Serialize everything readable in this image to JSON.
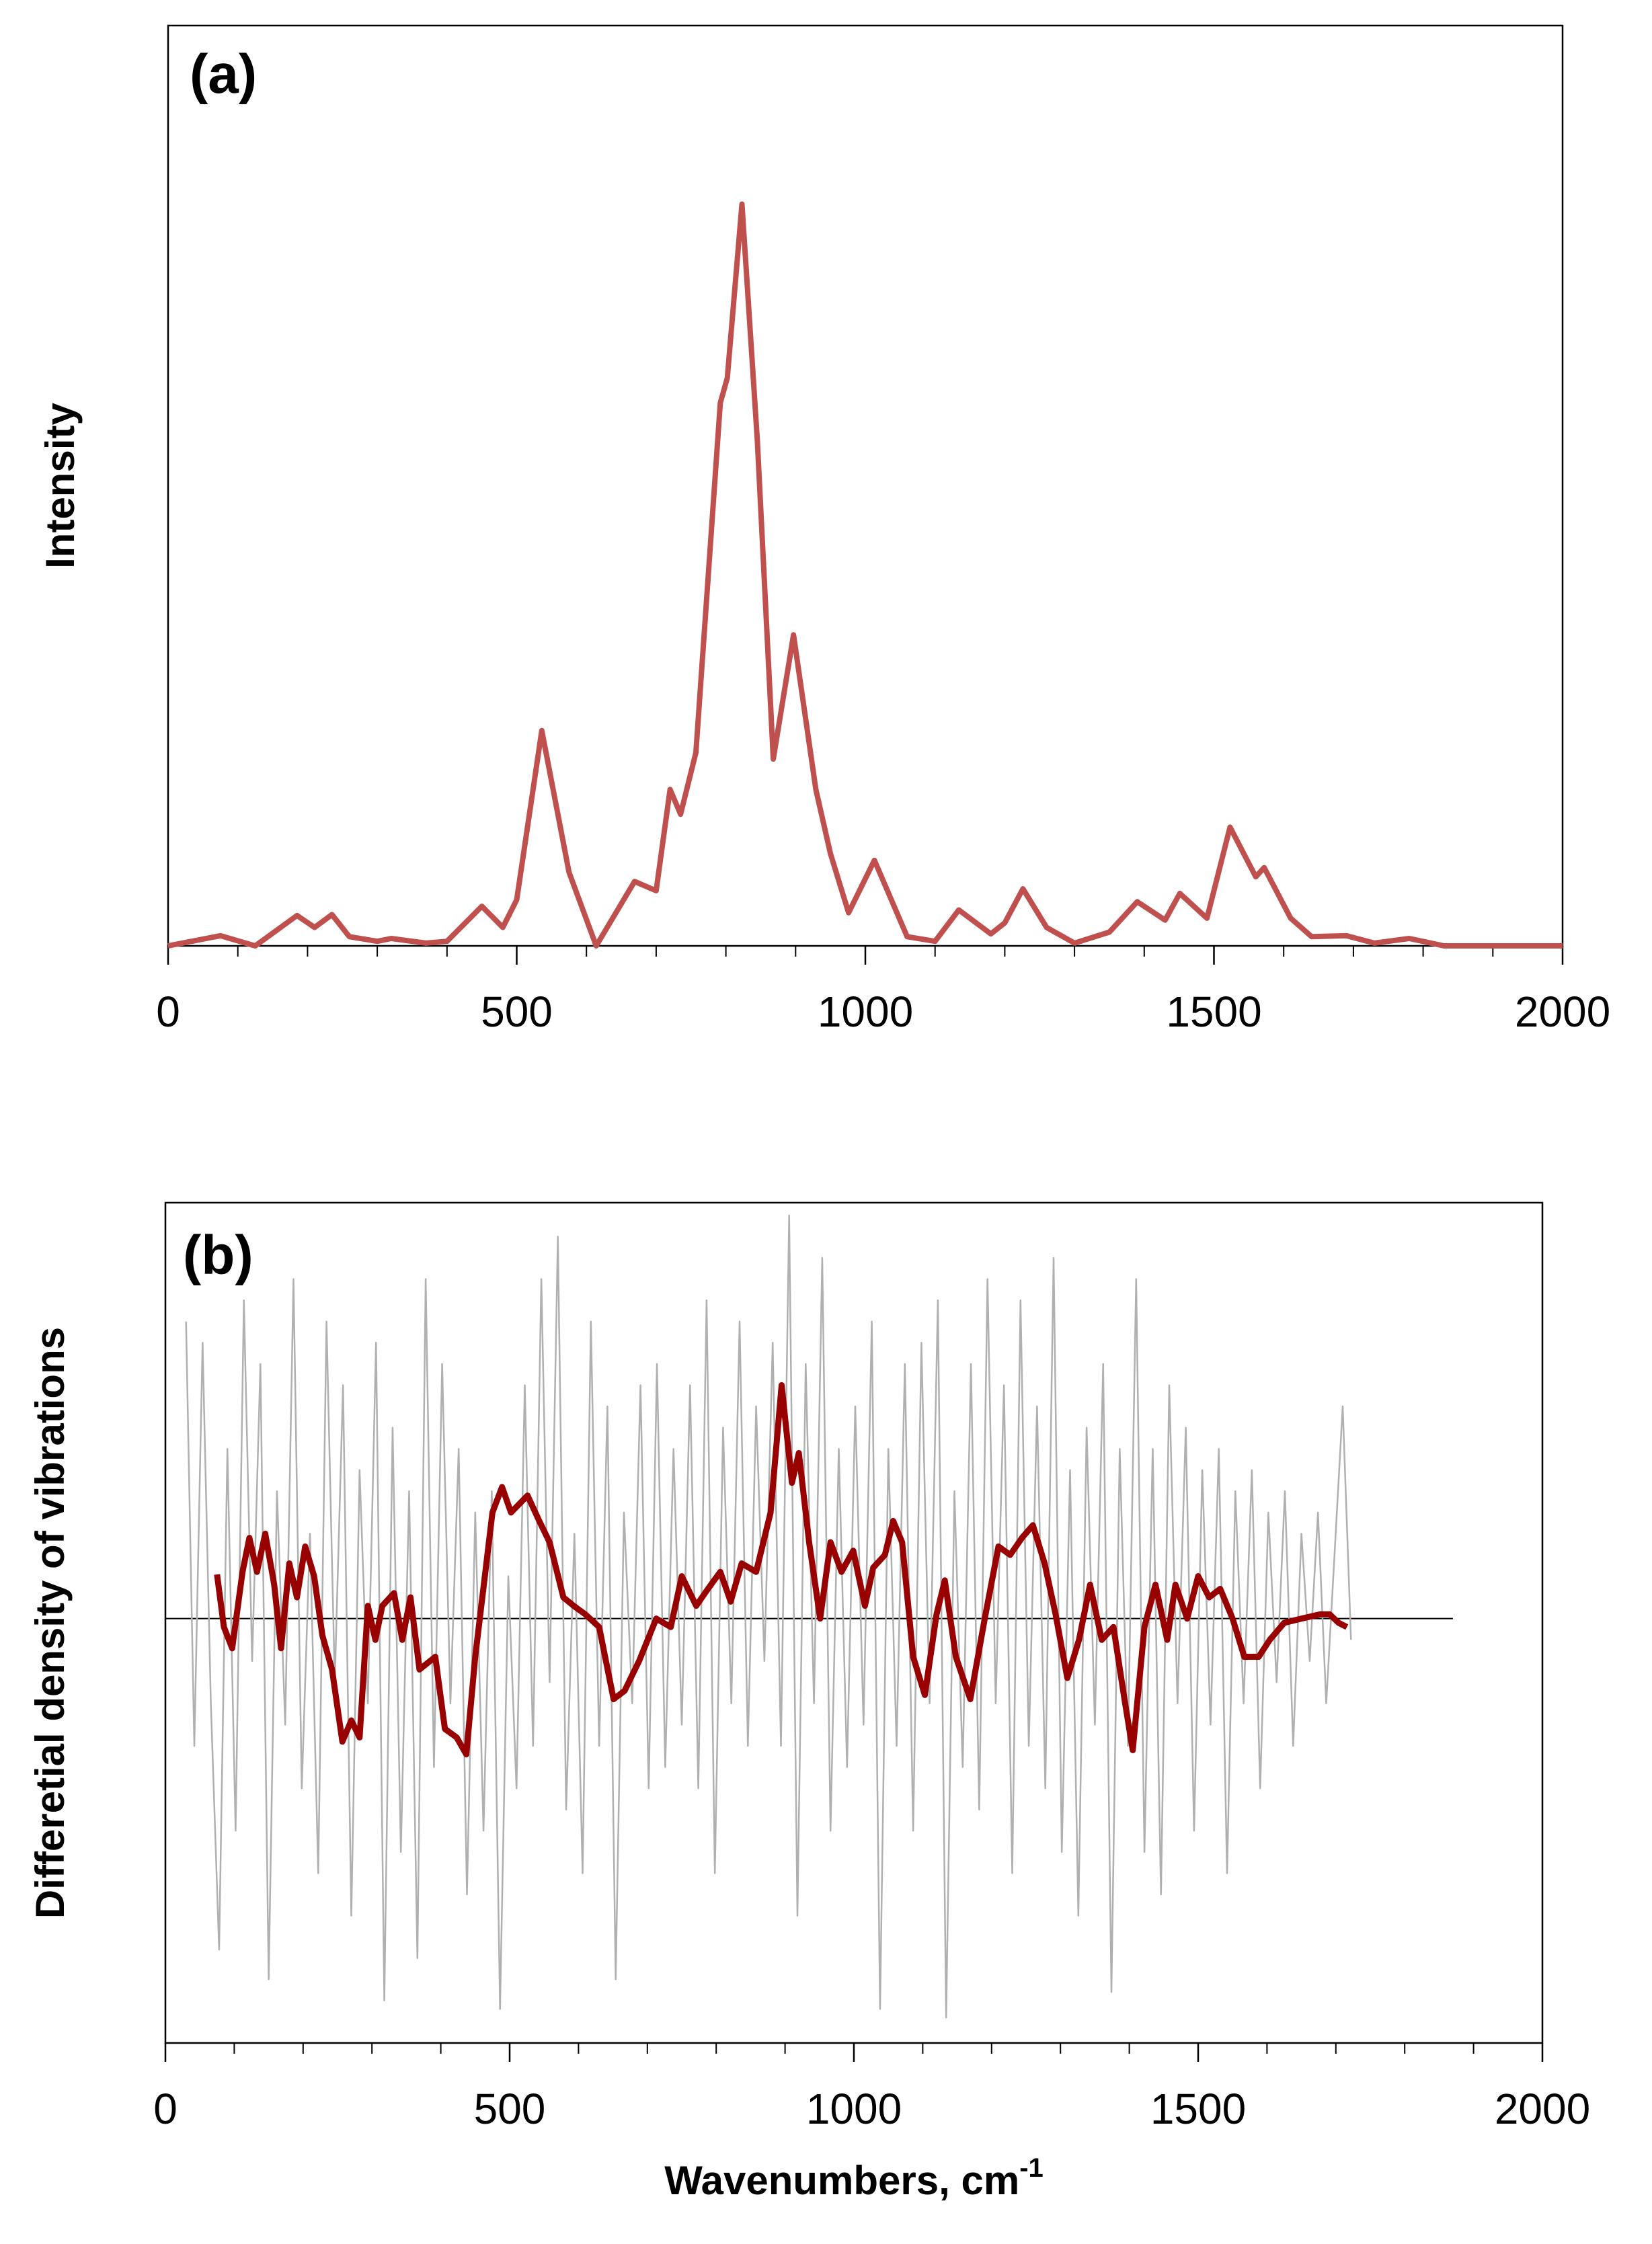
{
  "chart_data": [
    {
      "type": "line",
      "title": "(a)",
      "ylabel": "Intensity",
      "xlim": [
        0,
        2000
      ],
      "xticks": [
        0,
        500,
        1000,
        1500,
        2000
      ],
      "minor_tick_step": 100,
      "ylim": [
        0,
        100
      ],
      "series": [
        {
          "color": "#c0504d",
          "x": [
            0,
            75,
            125,
            185,
            210,
            235,
            260,
            300,
            320,
            370,
            400,
            450,
            480,
            500,
            536,
            575,
            614,
            669,
            700,
            720,
            735,
            757,
            792,
            802,
            823,
            845,
            868,
            897,
            929,
            950,
            976,
            1013,
            1060,
            1100,
            1134,
            1180,
            1200,
            1226,
            1260,
            1300,
            1350,
            1390,
            1430,
            1451,
            1490,
            1523,
            1560,
            1572,
            1610,
            1640,
            1690,
            1730,
            1780,
            1830,
            2000
          ],
          "values": [
            0,
            1.1,
            0,
            3.3,
            2,
            3.4,
            1,
            0.5,
            0.8,
            0.3,
            0.5,
            4.3,
            2,
            5,
            23.4,
            8,
            0,
            7,
            6,
            17,
            14.3,
            21,
            59,
            61.7,
            80.6,
            55,
            20.3,
            33.8,
            17,
            10,
            3.6,
            9.3,
            1,
            0.5,
            3.9,
            1.3,
            2.5,
            6.2,
            2,
            0.3,
            1.5,
            4.8,
            2.8,
            5.7,
            3,
            12.9,
            7.5,
            8.5,
            3,
            1,
            1.1,
            0.3,
            0.8,
            0,
            0
          ]
        }
      ]
    },
    {
      "type": "line",
      "title": "(b)",
      "ylabel": "Differetial density of vibrations",
      "xlabel": "Wavenumbers, cm",
      "xlabel_sup": "-1",
      "xlim": [
        0,
        2000
      ],
      "xticks": [
        0,
        500,
        1000,
        1500,
        2000
      ],
      "minor_tick_step": 100,
      "ylim": [
        -100,
        98
      ],
      "hline": {
        "y": 0,
        "x": [
          0,
          1870
        ]
      },
      "series": [
        {
          "color": "#b0b0b0",
          "x": [
            30,
            42,
            54,
            66,
            78,
            90,
            102,
            114,
            126,
            138,
            150,
            162,
            174,
            186,
            198,
            210,
            222,
            234,
            246,
            258,
            270,
            282,
            294,
            306,
            318,
            330,
            342,
            354,
            366,
            378,
            390,
            402,
            414,
            426,
            438,
            450,
            462,
            474,
            486,
            498,
            510,
            522,
            534,
            546,
            558,
            570,
            582,
            594,
            606,
            618,
            630,
            642,
            654,
            666,
            678,
            690,
            702,
            714,
            726,
            738,
            750,
            762,
            774,
            786,
            798,
            810,
            822,
            834,
            846,
            858,
            870,
            882,
            894,
            906,
            918,
            930,
            942,
            954,
            966,
            978,
            990,
            1002,
            1014,
            1026,
            1038,
            1050,
            1062,
            1074,
            1086,
            1098,
            1110,
            1122,
            1134,
            1146,
            1158,
            1170,
            1182,
            1194,
            1206,
            1218,
            1230,
            1242,
            1254,
            1266,
            1278,
            1290,
            1302,
            1314,
            1326,
            1338,
            1350,
            1362,
            1374,
            1386,
            1398,
            1410,
            1422,
            1434,
            1446,
            1458,
            1470,
            1482,
            1494,
            1506,
            1518,
            1530,
            1542,
            1554,
            1566,
            1578,
            1590,
            1602,
            1614,
            1626,
            1638,
            1650,
            1662,
            1674,
            1686,
            1698,
            1710,
            1722
          ],
          "values": [
            70,
            -30,
            65,
            -20,
            -78,
            40,
            -50,
            75,
            -10,
            60,
            -85,
            30,
            -25,
            80,
            -40,
            20,
            -60,
            70,
            -15,
            55,
            -70,
            35,
            -20,
            65,
            -90,
            45,
            -55,
            30,
            -80,
            80,
            -35,
            60,
            -20,
            40,
            -65,
            25,
            -50,
            30,
            -92,
            10,
            -40,
            55,
            -30,
            80,
            -15,
            90,
            -45,
            20,
            -60,
            70,
            -30,
            50,
            -85,
            25,
            -20,
            55,
            -40,
            60,
            -35,
            40,
            -25,
            55,
            -40,
            75,
            -60,
            45,
            -20,
            70,
            -30,
            50,
            -10,
            65,
            -30,
            95,
            -70,
            60,
            -20,
            85,
            -50,
            40,
            -35,
            50,
            -25,
            70,
            -92,
            40,
            -30,
            60,
            -50,
            65,
            -20,
            75,
            -94,
            30,
            -35,
            60,
            -45,
            80,
            -20,
            55,
            -60,
            75,
            -30,
            50,
            -40,
            85,
            -55,
            35,
            -70,
            45,
            -25,
            60,
            -88,
            40,
            -30,
            80,
            -55,
            40,
            -65,
            55,
            -20,
            45,
            -50,
            35,
            -25,
            40,
            -60,
            30,
            -20,
            35,
            -40,
            25,
            -15,
            30,
            -30,
            20,
            -10,
            25,
            -20,
            15,
            50,
            -5
          ]
        },
        {
          "color": "#990000",
          "x": [
            75,
            85,
            97,
            112,
            122,
            133,
            145,
            158,
            168,
            180,
            191,
            203,
            216,
            228,
            242,
            257,
            270,
            282,
            294,
            305,
            315,
            332,
            344,
            356,
            369,
            392,
            406,
            423,
            437,
            450,
            475,
            489,
            502,
            514,
            526,
            543,
            558,
            578,
            593,
            610,
            630,
            651,
            667,
            688,
            713,
            734,
            750,
            771,
            788,
            806,
            821,
            837,
            858,
            879,
            895,
            910,
            920,
            935,
            951,
            966,
            982,
            999,
            1016,
            1028,
            1045,
            1057,
            1070,
            1086,
            1103,
            1120,
            1132,
            1148,
            1169,
            1190,
            1210,
            1227,
            1244,
            1260,
            1277,
            1293,
            1310,
            1327,
            1343,
            1360,
            1377,
            1393,
            1405,
            1422,
            1438,
            1455,
            1467,
            1484,
            1500,
            1516,
            1532,
            1550,
            1567,
            1588,
            1604,
            1625,
            1650,
            1677,
            1691,
            1704,
            1716
          ],
          "values": [
            10.4,
            -2,
            -7,
            11,
            19,
            11,
            20,
            8,
            -7,
            13,
            5,
            17,
            10,
            -4,
            -12,
            -29,
            -24,
            -28,
            3,
            -5,
            3,
            6,
            -5,
            5,
            -12,
            -9,
            -26,
            -28,
            -32,
            -9,
            25,
            31,
            25,
            27,
            29,
            23,
            18,
            5,
            3,
            1,
            -2,
            -19,
            -17,
            -10,
            0,
            -2,
            10,
            3,
            7,
            11,
            4,
            13,
            11,
            25,
            55,
            32,
            39,
            18,
            0,
            18,
            11,
            16,
            3,
            12,
            15,
            23,
            18,
            -9,
            -18,
            1,
            9,
            -9,
            -19,
            0,
            17,
            15,
            19,
            22,
            13,
            1,
            -14,
            -5,
            8,
            -5,
            -2,
            -19,
            -31,
            -2,
            8,
            -5,
            8,
            0,
            10,
            5,
            7,
            0,
            -9,
            -9,
            -5,
            -1,
            0,
            1,
            1,
            -1,
            -2
          ]
        }
      ]
    }
  ]
}
